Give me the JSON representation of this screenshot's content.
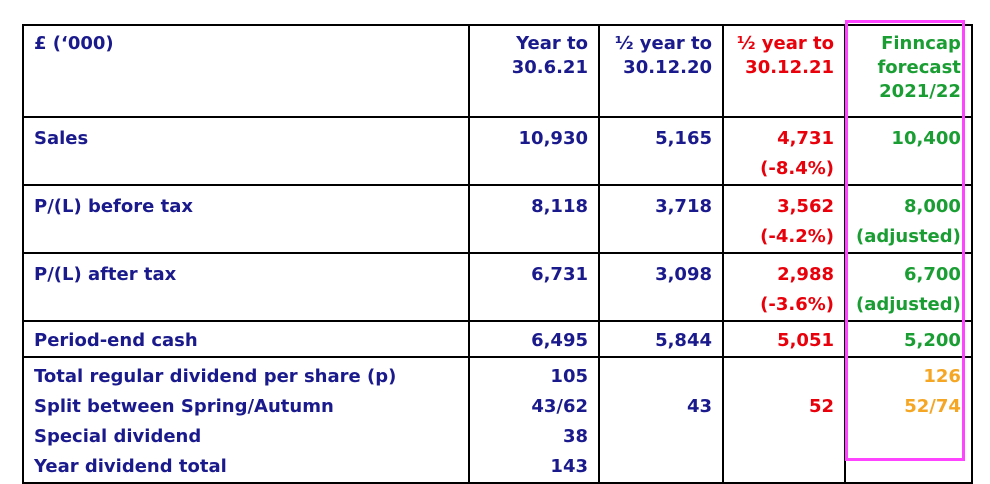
{
  "table": {
    "header": {
      "label": "£ (‘000)",
      "col1": [
        "Year to",
        "30.6.21"
      ],
      "col2": [
        "½ year to",
        "30.12.20"
      ],
      "col3": [
        "½ year to",
        "30.12.21"
      ],
      "col4": [
        "Finncap",
        "forecast",
        "2021/22"
      ]
    },
    "rows": {
      "sales": {
        "label": "Sales",
        "v1": "10,930",
        "v2": "5,165",
        "v3": "4,731",
        "v3_change": "(-8.4%)",
        "v4": "10,400"
      },
      "pbt": {
        "label": "P/(L) before tax",
        "v1": "8,118",
        "v2": "3,718",
        "v3": "3,562",
        "v3_change": "(-4.2%)",
        "v4": "8,000",
        "v4_note": "(adjusted)"
      },
      "pat": {
        "label": "P/(L) after tax",
        "v1": "6,731",
        "v2": "3,098",
        "v3": "2,988",
        "v3_change": "(-3.6%)",
        "v4": "6,700",
        "v4_note": "(adjusted)"
      },
      "cash": {
        "label": "Period-end cash",
        "v1": "6,495",
        "v2": "5,844",
        "v3": "5,051",
        "v4": "5,200"
      },
      "dividends": {
        "labels": [
          "Total regular dividend per share (p)",
          "Split between Spring/Autumn",
          "Special dividend",
          "Year dividend total"
        ],
        "v1": [
          "105",
          "43/62",
          "38",
          "143"
        ],
        "v2_split": "43",
        "v3_split": "52",
        "v4": [
          "126",
          "52/74"
        ]
      }
    }
  },
  "colors": {
    "navy": "#1a1a8c",
    "red": "#e8000b",
    "green": "#1a9e33",
    "orange": "#f5a623",
    "highlight": "#ff44ff"
  }
}
